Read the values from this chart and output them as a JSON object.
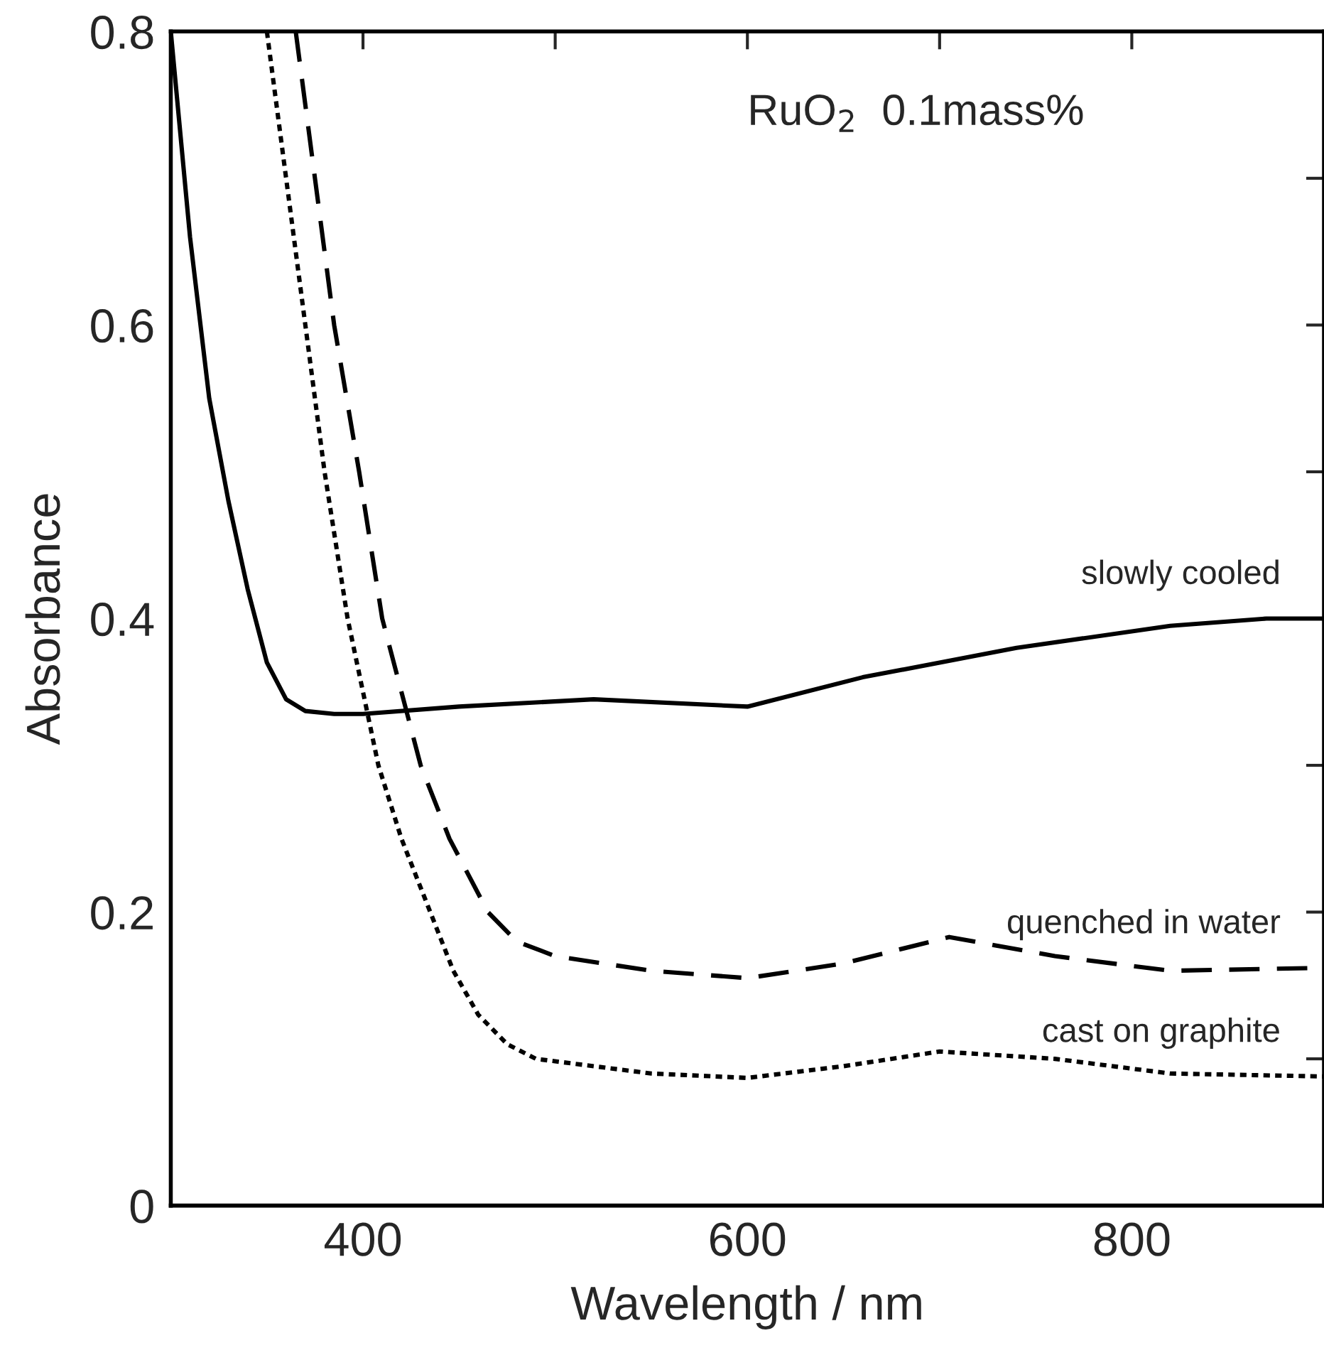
{
  "chart_data": {
    "type": "line",
    "xlabel": "Wavelength / nm",
    "ylabel": "Absorbance",
    "annotations": [
      "RuO$_{2}$  0.1mass%"
    ],
    "xlim": [
      300,
      900
    ],
    "xticks": [
      400,
      {
        "value": 500,
        "label": null
      },
      600,
      {
        "value": 700,
        "label": null
      },
      800
    ],
    "ylim": [
      0,
      0.8
    ],
    "yticks": [
      {
        "value": 0,
        "label": "0"
      },
      {
        "value": 0.1,
        "label": null
      },
      0.2,
      {
        "value": 0.3,
        "label": null
      },
      0.4,
      {
        "value": 0.5,
        "label": null
      },
      0.6,
      {
        "value": 0.7,
        "label": null
      },
      0.8
    ],
    "grid": false,
    "legend": false,
    "marker": "none",
    "series": [
      {
        "name": "slowly cooled",
        "color": "#000000",
        "line_style": "solid",
        "x": [
          300,
          310,
          320,
          330,
          340,
          350,
          360,
          370,
          385,
          400,
          450,
          520,
          600,
          660,
          740,
          820,
          870,
          900
        ],
        "values": [
          0.8,
          0.66,
          0.55,
          0.48,
          0.42,
          0.37,
          0.345,
          0.337,
          0.335,
          0.335,
          0.34,
          0.345,
          0.34,
          0.36,
          0.38,
          0.395,
          0.4,
          0.4
        ]
      },
      {
        "name": "quenched in water",
        "color": "#000000",
        "line_style": "dashed",
        "x": [
          365,
          375,
          385,
          398,
          410,
          420,
          430,
          445,
          465,
          480,
          500,
          550,
          600,
          650,
          705,
          760,
          820,
          900
        ],
        "values": [
          0.8,
          0.7,
          0.6,
          0.5,
          0.4,
          0.35,
          0.3,
          0.25,
          0.2,
          0.18,
          0.17,
          0.16,
          0.155,
          0.165,
          0.183,
          0.17,
          0.16,
          0.162
        ]
      },
      {
        "name": "cast on graphite",
        "color": "#000000",
        "line_style": "dotted",
        "x": [
          350,
          360,
          370,
          380,
          392,
          400,
          408,
          420,
          435,
          447,
          460,
          475,
          490,
          550,
          600,
          650,
          700,
          760,
          820,
          900
        ],
        "values": [
          0.8,
          0.7,
          0.6,
          0.5,
          0.4,
          0.35,
          0.3,
          0.25,
          0.2,
          0.16,
          0.13,
          0.11,
          0.1,
          0.09,
          0.087,
          0.095,
          0.105,
          0.1,
          0.09,
          0.088
        ]
      }
    ]
  }
}
